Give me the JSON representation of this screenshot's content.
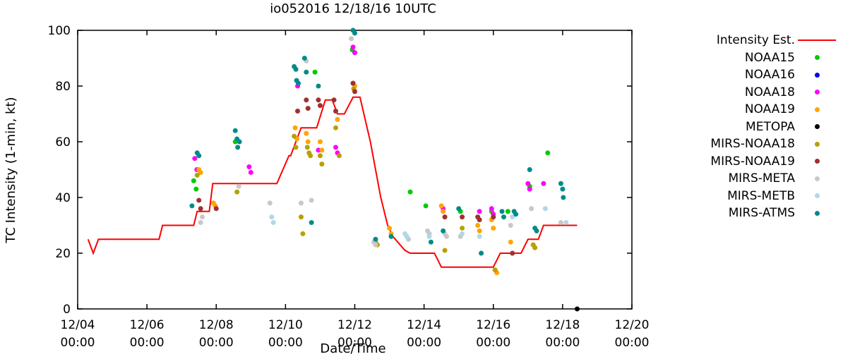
{
  "chart_data": {
    "type": "scatter",
    "title": "io052016 12/18/16 10UTC",
    "xlabel": "Date/Time",
    "ylabel": "TC Intensity (1-min, kt)",
    "ylim": [
      0,
      100
    ],
    "xlim_days": [
      4,
      20
    ],
    "grid": false,
    "legend_position": "right-outside",
    "y_ticks": [
      0,
      20,
      40,
      60,
      80,
      100
    ],
    "x_ticks": [
      {
        "day": 4,
        "label": "12/04",
        "sub": "00:00"
      },
      {
        "day": 6,
        "label": "12/06",
        "sub": "00:00"
      },
      {
        "day": 8,
        "label": "12/08",
        "sub": "00:00"
      },
      {
        "day": 10,
        "label": "12/10",
        "sub": "00:00"
      },
      {
        "day": 12,
        "label": "12/12",
        "sub": "00:00"
      },
      {
        "day": 14,
        "label": "12/14",
        "sub": "00:00"
      },
      {
        "day": 16,
        "label": "12/16",
        "sub": "00:00"
      },
      {
        "day": 18,
        "label": "12/18",
        "sub": "00:00"
      },
      {
        "day": 20,
        "label": "12/20",
        "sub": "00:00"
      }
    ],
    "intensity_line": {
      "name": "Intensity Est.",
      "color": "#ff0000",
      "points": [
        [
          4.3,
          25
        ],
        [
          4.45,
          20
        ],
        [
          4.6,
          25
        ],
        [
          6.35,
          25
        ],
        [
          6.45,
          30
        ],
        [
          7.35,
          30
        ],
        [
          7.45,
          35
        ],
        [
          7.8,
          35
        ],
        [
          7.9,
          45
        ],
        [
          9.75,
          45
        ],
        [
          10.1,
          55
        ],
        [
          10.15,
          55
        ],
        [
          10.45,
          65
        ],
        [
          10.9,
          65
        ],
        [
          11.15,
          75
        ],
        [
          11.35,
          75
        ],
        [
          11.5,
          70
        ],
        [
          11.7,
          70
        ],
        [
          11.95,
          76
        ],
        [
          12.15,
          76
        ],
        [
          12.45,
          60
        ],
        [
          12.75,
          40
        ],
        [
          12.95,
          30
        ],
        [
          13.1,
          26
        ],
        [
          13.45,
          21
        ],
        [
          13.6,
          20
        ],
        [
          14.3,
          20
        ],
        [
          14.5,
          15
        ],
        [
          16.0,
          15
        ],
        [
          16.2,
          20
        ],
        [
          16.8,
          20
        ],
        [
          17.0,
          25
        ],
        [
          17.3,
          25
        ],
        [
          17.45,
          30
        ],
        [
          18.42,
          30
        ]
      ]
    },
    "series": [
      {
        "name": "NOAA15",
        "color": "#00cc00",
        "points": [
          [
            7.35,
            46
          ],
          [
            7.42,
            43
          ],
          [
            8.55,
            60
          ],
          [
            10.85,
            85
          ],
          [
            11.93,
            93
          ],
          [
            13.6,
            42
          ],
          [
            14.05,
            37
          ],
          [
            15.05,
            35
          ],
          [
            15.95,
            35
          ],
          [
            16.42,
            35
          ],
          [
            17.05,
            44
          ],
          [
            17.57,
            56
          ]
        ]
      },
      {
        "name": "NOAA16",
        "color": "#0000ff",
        "points": []
      },
      {
        "name": "NOAA18",
        "color": "#ff00ff",
        "points": [
          [
            7.38,
            54
          ],
          [
            7.44,
            50
          ],
          [
            8.95,
            51
          ],
          [
            9.0,
            49
          ],
          [
            10.35,
            80
          ],
          [
            10.95,
            57
          ],
          [
            11.45,
            58
          ],
          [
            11.5,
            56
          ],
          [
            11.95,
            94
          ],
          [
            12.0,
            92
          ],
          [
            14.55,
            36
          ],
          [
            15.6,
            35
          ],
          [
            15.95,
            36
          ],
          [
            16.0,
            34
          ],
          [
            17.0,
            45
          ],
          [
            17.05,
            43
          ],
          [
            17.45,
            45
          ]
        ]
      },
      {
        "name": "NOAA19",
        "color": "#ffa500",
        "points": [
          [
            7.5,
            50
          ],
          [
            7.55,
            49
          ],
          [
            7.92,
            38
          ],
          [
            7.97,
            37
          ],
          [
            10.28,
            65
          ],
          [
            10.33,
            61
          ],
          [
            10.6,
            63
          ],
          [
            10.65,
            60
          ],
          [
            11.0,
            60
          ],
          [
            11.05,
            57
          ],
          [
            11.5,
            68
          ],
          [
            11.95,
            81
          ],
          [
            12.0,
            80
          ],
          [
            13.0,
            29
          ],
          [
            13.05,
            27
          ],
          [
            14.5,
            37
          ],
          [
            14.55,
            35
          ],
          [
            15.55,
            30
          ],
          [
            15.6,
            28
          ],
          [
            15.95,
            32
          ],
          [
            16.0,
            29
          ],
          [
            16.1,
            13
          ],
          [
            16.5,
            24
          ]
        ]
      },
      {
        "name": "METOPA",
        "color": "#000000",
        "points": [
          [
            18.42,
            0
          ]
        ]
      },
      {
        "name": "MIRS-NOAA18",
        "color": "#b8a000",
        "points": [
          [
            7.45,
            48
          ],
          [
            8.6,
            42
          ],
          [
            10.25,
            62
          ],
          [
            10.3,
            58
          ],
          [
            10.45,
            33
          ],
          [
            10.5,
            27
          ],
          [
            10.63,
            58
          ],
          [
            10.68,
            56
          ],
          [
            10.72,
            55
          ],
          [
            11.0,
            55
          ],
          [
            11.05,
            52
          ],
          [
            11.45,
            65
          ],
          [
            11.55,
            55
          ],
          [
            11.97,
            79
          ],
          [
            12.6,
            24
          ],
          [
            12.65,
            23
          ],
          [
            14.6,
            21
          ],
          [
            15.1,
            29
          ],
          [
            16.05,
            14
          ],
          [
            17.15,
            23
          ],
          [
            17.2,
            22
          ]
        ]
      },
      {
        "name": "MIRS-NOAA19",
        "color": "#a03030",
        "points": [
          [
            7.5,
            39
          ],
          [
            7.55,
            36
          ],
          [
            8.0,
            36
          ],
          [
            10.35,
            71
          ],
          [
            10.6,
            75
          ],
          [
            10.65,
            72
          ],
          [
            10.95,
            75
          ],
          [
            11.0,
            73
          ],
          [
            11.4,
            75
          ],
          [
            11.45,
            71
          ],
          [
            11.95,
            81
          ],
          [
            12.0,
            78
          ],
          [
            14.6,
            33
          ],
          [
            15.1,
            33
          ],
          [
            15.55,
            33
          ],
          [
            15.6,
            32
          ],
          [
            16.0,
            33
          ],
          [
            16.55,
            20
          ]
        ]
      },
      {
        "name": "MIRS-META",
        "color": "#c8c8c8",
        "points": [
          [
            7.55,
            31
          ],
          [
            7.6,
            33
          ],
          [
            8.65,
            44
          ],
          [
            9.55,
            38
          ],
          [
            10.45,
            38
          ],
          [
            10.6,
            89
          ],
          [
            10.75,
            39
          ],
          [
            11.9,
            97
          ],
          [
            12.55,
            24
          ],
          [
            12.6,
            23
          ],
          [
            13.5,
            26
          ],
          [
            13.55,
            25
          ],
          [
            14.1,
            28
          ],
          [
            14.15,
            27
          ],
          [
            14.6,
            27
          ],
          [
            14.65,
            26
          ],
          [
            15.05,
            26
          ],
          [
            16.5,
            30
          ],
          [
            17.1,
            36
          ],
          [
            17.5,
            36
          ],
          [
            17.95,
            31
          ]
        ]
      },
      {
        "name": "MIRS-METB",
        "color": "#b0d8e8",
        "points": [
          [
            9.6,
            33
          ],
          [
            9.65,
            31
          ],
          [
            13.45,
            27
          ],
          [
            13.5,
            26
          ],
          [
            14.15,
            26
          ],
          [
            15.1,
            27
          ],
          [
            15.6,
            26
          ],
          [
            16.55,
            33
          ],
          [
            17.5,
            36
          ],
          [
            18.1,
            31
          ]
        ]
      },
      {
        "name": "MIRS-ATMS",
        "color": "#008b8b",
        "points": [
          [
            7.3,
            37
          ],
          [
            7.45,
            56
          ],
          [
            7.5,
            55
          ],
          [
            8.55,
            64
          ],
          [
            8.6,
            61
          ],
          [
            8.62,
            58
          ],
          [
            8.67,
            60
          ],
          [
            10.25,
            87
          ],
          [
            10.3,
            86
          ],
          [
            10.32,
            82
          ],
          [
            10.37,
            81
          ],
          [
            10.55,
            90
          ],
          [
            10.6,
            85
          ],
          [
            10.75,
            31
          ],
          [
            10.95,
            80
          ],
          [
            11.95,
            100
          ],
          [
            12.0,
            99
          ],
          [
            12.6,
            25
          ],
          [
            13.05,
            26
          ],
          [
            14.2,
            24
          ],
          [
            14.55,
            28
          ],
          [
            15.0,
            36
          ],
          [
            15.65,
            20
          ],
          [
            16.25,
            35
          ],
          [
            16.3,
            33
          ],
          [
            16.6,
            35
          ],
          [
            16.65,
            34
          ],
          [
            17.05,
            50
          ],
          [
            17.2,
            29
          ],
          [
            17.25,
            28
          ],
          [
            17.95,
            45
          ],
          [
            18.0,
            43
          ],
          [
            18.02,
            40
          ]
        ]
      }
    ]
  }
}
